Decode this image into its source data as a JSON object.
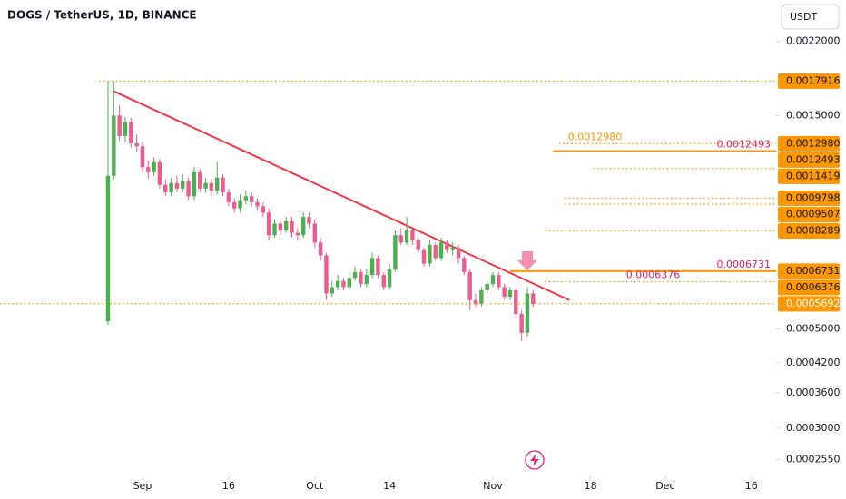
{
  "chart_data": {
    "type": "candlestick",
    "title": "DOGS / TetherUS, 1D, BINANCE",
    "currency": "USDT",
    "log_scale": true,
    "ylim": [
      0.000234,
      0.00272
    ],
    "yticks": [
      {
        "value": 0.0022,
        "label": "0.0022000"
      },
      {
        "value": 0.0015,
        "label": "0.0015000"
      },
      {
        "value": 0.0005,
        "label": "0.0005000"
      },
      {
        "value": 0.00042,
        "label": "0.0004200"
      },
      {
        "value": 0.00036,
        "label": "0.0003600"
      },
      {
        "value": 0.0003,
        "label": "0.0003000"
      },
      {
        "value": 0.000255,
        "label": "0.0002550"
      }
    ],
    "xlim": [
      -18.8,
      116.3
    ],
    "xticks": [
      {
        "value": 6,
        "label": "Sep"
      },
      {
        "value": 21,
        "label": "16"
      },
      {
        "value": 36,
        "label": "Oct"
      },
      {
        "value": 49,
        "label": "14"
      },
      {
        "value": 67,
        "label": "Nov"
      },
      {
        "value": 84,
        "label": "18"
      },
      {
        "value": 97,
        "label": "Dec"
      },
      {
        "value": 112,
        "label": "16"
      }
    ],
    "up_color": "#4caf50",
    "down_color": "#ec5c8c",
    "x": [
      0,
      1,
      2,
      3,
      4,
      5,
      6,
      7,
      8,
      9,
      10,
      11,
      12,
      13,
      14,
      15,
      16,
      17,
      18,
      19,
      20,
      21,
      22,
      23,
      24,
      25,
      26,
      27,
      28,
      29,
      30,
      31,
      32,
      33,
      34,
      35,
      36,
      37,
      38,
      39,
      40,
      41,
      42,
      43,
      44,
      45,
      46,
      47,
      48,
      49,
      50,
      51,
      52,
      53,
      54,
      55,
      56,
      57,
      58,
      59,
      60,
      61,
      62,
      63,
      64,
      65,
      66,
      67,
      68,
      69,
      70,
      71,
      72,
      73,
      74
    ],
    "open": [
      0.00052,
      0.0011,
      0.0015,
      0.00135,
      0.00145,
      0.0013,
      0.00128,
      0.00115,
      0.00112,
      0.00118,
      0.00105,
      0.00101,
      0.00106,
      0.00103,
      0.00107,
      0.00099,
      0.00112,
      0.00103,
      0.00106,
      0.00102,
      0.00109,
      0.00101,
      0.00096,
      0.00093,
      0.00097,
      0.00099,
      0.00096,
      0.00094,
      0.00091,
      0.00081,
      0.00086,
      0.00083,
      0.00087,
      0.00082,
      0.00081,
      0.00089,
      0.00086,
      0.00078,
      0.00073,
      0.0006,
      0.00062,
      0.00064,
      0.00062,
      0.00065,
      0.00067,
      0.00063,
      0.00066,
      0.00072,
      0.00066,
      0.00062,
      0.00068,
      0.00081,
      0.00078,
      0.00083,
      0.00079,
      0.00075,
      0.0007,
      0.00077,
      0.00072,
      0.00078,
      0.00075,
      0.00076,
      0.00072,
      0.00067,
      0.00058,
      0.00057,
      0.00061,
      0.00063,
      0.00066,
      0.00062,
      0.00059,
      0.00061,
      0.00054,
      0.00049,
      0.0006
    ],
    "high": [
      0.00179,
      0.00179,
      0.00158,
      0.00149,
      0.00148,
      0.00136,
      0.00131,
      0.00119,
      0.00121,
      0.0012,
      0.00108,
      0.00109,
      0.0011,
      0.00111,
      0.00109,
      0.00115,
      0.00114,
      0.00109,
      0.00108,
      0.00118,
      0.00111,
      0.00103,
      0.00098,
      0.001,
      0.00102,
      0.00101,
      0.00098,
      0.00096,
      0.00093,
      0.00088,
      0.00088,
      0.00089,
      0.00089,
      0.00084,
      0.00091,
      0.00091,
      0.00088,
      0.0008,
      0.00074,
      0.00064,
      0.00066,
      0.00065,
      0.00067,
      0.00069,
      0.00068,
      0.00068,
      0.00074,
      0.00073,
      0.00067,
      0.0007,
      0.00083,
      0.00084,
      0.00089,
      0.00084,
      0.0008,
      0.00076,
      0.00079,
      0.00078,
      0.0008,
      0.00079,
      0.00078,
      0.00077,
      0.00073,
      0.00068,
      0.0006,
      0.00062,
      0.00064,
      0.00067,
      0.00067,
      0.00063,
      0.00062,
      0.00062,
      0.00055,
      0.00062,
      0.00061
    ],
    "low": [
      0.00051,
      0.00108,
      0.00132,
      0.00131,
      0.00127,
      0.00124,
      0.00112,
      0.00108,
      0.0011,
      0.00103,
      0.00099,
      0.00099,
      0.00101,
      0.00101,
      0.00097,
      0.00097,
      0.00101,
      0.00101,
      0.00099,
      0.001,
      0.00099,
      0.00094,
      0.00091,
      0.00091,
      0.00095,
      0.00094,
      0.00092,
      0.00089,
      0.00079,
      0.0008,
      0.00081,
      0.00082,
      0.0008,
      0.00079,
      0.0008,
      0.00084,
      0.00076,
      0.00071,
      0.00058,
      0.00059,
      0.00061,
      0.00061,
      0.00061,
      0.00064,
      0.00062,
      0.00062,
      0.00065,
      0.00065,
      0.00061,
      0.00061,
      0.00067,
      0.00077,
      0.00077,
      0.00077,
      0.00074,
      0.00069,
      0.00069,
      0.00071,
      0.00071,
      0.00074,
      0.00073,
      0.0007,
      0.00066,
      0.00055,
      0.00056,
      0.00056,
      0.0006,
      0.00062,
      0.00061,
      0.00058,
      0.00058,
      0.00053,
      0.00047,
      0.00048,
      0.00056
    ],
    "close": [
      0.0011,
      0.0015,
      0.00135,
      0.00145,
      0.0013,
      0.00128,
      0.00115,
      0.00112,
      0.00118,
      0.00105,
      0.00101,
      0.00106,
      0.00103,
      0.00107,
      0.00099,
      0.00112,
      0.00103,
      0.00106,
      0.00102,
      0.00109,
      0.00101,
      0.00096,
      0.00093,
      0.00097,
      0.00099,
      0.00096,
      0.00094,
      0.00091,
      0.00081,
      0.00086,
      0.00083,
      0.00087,
      0.00082,
      0.00081,
      0.00089,
      0.00086,
      0.00078,
      0.00073,
      0.0006,
      0.00062,
      0.00064,
      0.00062,
      0.00065,
      0.00067,
      0.00063,
      0.00066,
      0.00072,
      0.00066,
      0.00062,
      0.00068,
      0.00081,
      0.00078,
      0.00083,
      0.00079,
      0.00075,
      0.0007,
      0.00077,
      0.00072,
      0.00078,
      0.00075,
      0.00076,
      0.00072,
      0.00067,
      0.00058,
      0.00057,
      0.00061,
      0.00063,
      0.00066,
      0.00062,
      0.00059,
      0.00061,
      0.00054,
      0.00049,
      0.0006,
      0.0005692
    ],
    "trendline": {
      "x": [
        1,
        80.3
      ],
      "values": [
        0.0017,
        0.00058
      ],
      "color": "#f23645"
    },
    "levels": [
      {
        "value": 0.0017916,
        "label": "0.0017916",
        "from": -1.5,
        "line": "dotted",
        "color": "#ff9800",
        "label_text_color": "#131722"
      },
      {
        "value": 0.001298,
        "label": "0.0012980",
        "from": 78.5,
        "line": "dotted",
        "color": "#ff9800",
        "label_text_color": "#131722",
        "inline": "left",
        "inline_color": "#ff9800"
      },
      {
        "value": 0.0012493,
        "label": "0.0012493",
        "from": 77.5,
        "line": "solid",
        "color": "#ff9800",
        "label_text_color": "#131722",
        "inline": "right",
        "inline_color": "#e91e63"
      },
      {
        "value": 0.0011419,
        "label": "0.0011419",
        "from": 84.5,
        "line": "dotted",
        "color": "#ff9800",
        "label_text_color": "#131722"
      },
      {
        "value": 0.0009798,
        "label": "0.0009798",
        "from": 79.5,
        "line": "dotted",
        "color": "#ff9800",
        "label_text_color": "#131722"
      },
      {
        "value": 0.0009507,
        "label": "0.0009507",
        "from": 79.5,
        "line": "dotted",
        "color": "#ff9800",
        "label_text_color": "#131722"
      },
      {
        "value": 0.0008289,
        "label": "0.0008289",
        "from": 76,
        "line": "dotted",
        "color": "#ff9800",
        "label_text_color": "#131722"
      },
      {
        "value": 0.0006731,
        "label": "0.0006731",
        "from": 70,
        "line": "solid",
        "color": "#ff9800",
        "label_text_color": "#131722",
        "inline": "right",
        "inline_color": "#e91e63"
      },
      {
        "value": 0.0006376,
        "label": "0.0006376",
        "from": 76,
        "line": "dotted",
        "color": "#ff9800",
        "label_text_color": "#131722",
        "inline": "center",
        "inline_color": "#e91e63"
      },
      {
        "value": 0.0005692,
        "label": "0.0005692",
        "from": -18.8,
        "line": "dotted",
        "color": "#ff9800",
        "label_text_color": "#ffffff"
      }
    ]
  }
}
